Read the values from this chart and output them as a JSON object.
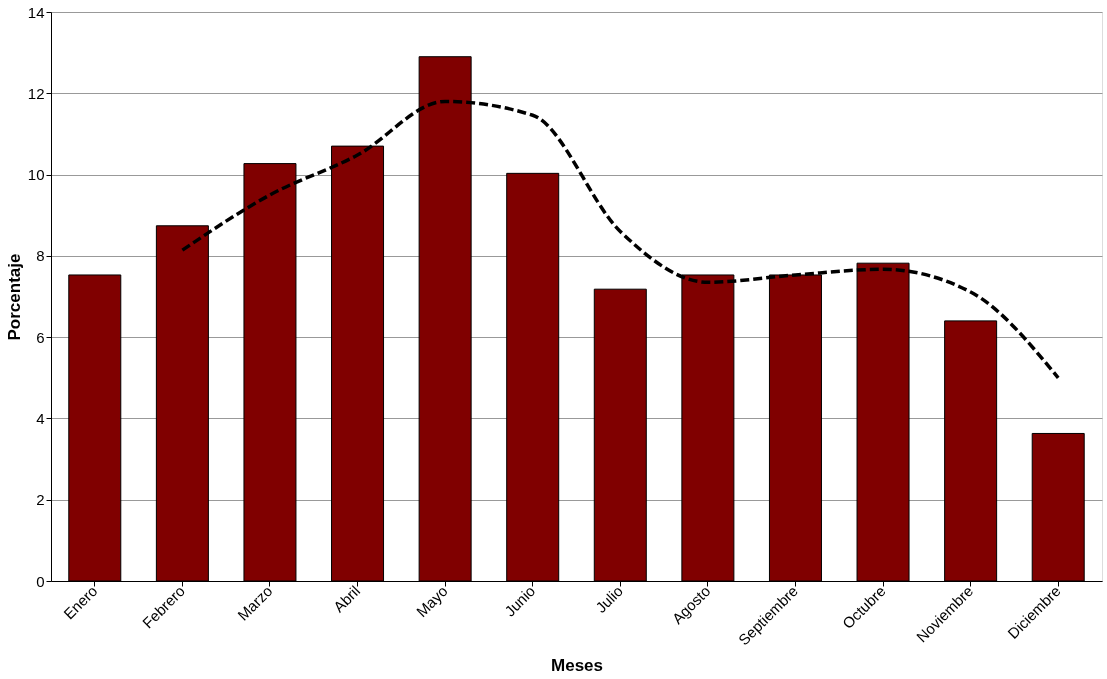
{
  "chart_data": {
    "type": "bar",
    "xlabel": "Meses",
    "ylabel": "Porcentaje",
    "categories": [
      "Enero",
      "Febrero",
      "Marzo",
      "Abril",
      "Mayo",
      "Junio",
      "Julio",
      "Agosto",
      "Septiembre",
      "Octubre",
      "Noviembre",
      "Diciembre"
    ],
    "series": [
      {
        "color": "#800000",
        "values": [
          7.53,
          8.74,
          10.27,
          10.7,
          12.9,
          10.03,
          7.18,
          7.53,
          7.53,
          7.82,
          6.4,
          3.63
        ]
      },
      {
        "type": "line",
        "color": "#000000",
        "line_style": "dashed",
        "values": [
          null,
          8.14,
          9.5,
          10.48,
          11.8,
          11.46,
          8.6,
          7.35,
          7.53,
          7.67,
          7.11,
          5.0
        ]
      }
    ],
    "ylim": [
      0,
      14
    ],
    "yticks": [
      0,
      2,
      4,
      6,
      8,
      10,
      12,
      14
    ],
    "grid": "y"
  }
}
